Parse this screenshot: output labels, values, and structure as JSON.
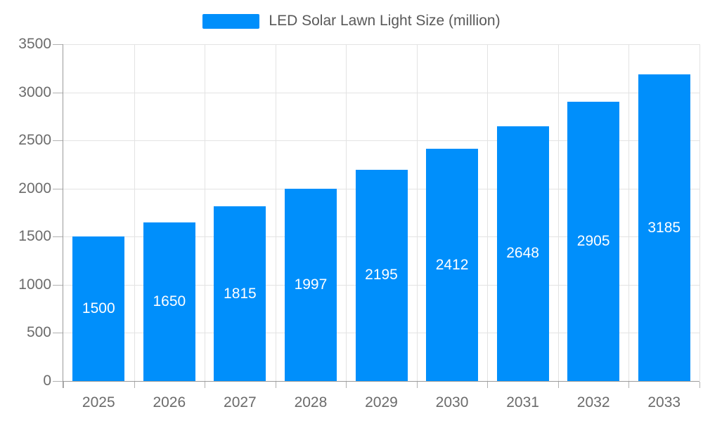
{
  "chart_data": {
    "type": "bar",
    "title": "",
    "legend": "LED Solar Lawn Light Size (million)",
    "legend_position": "top",
    "categories": [
      "2025",
      "2026",
      "2027",
      "2028",
      "2029",
      "2030",
      "2031",
      "2032",
      "2033"
    ],
    "series": [
      {
        "name": "LED Solar Lawn Light Size (million)",
        "values": [
          1500,
          1650,
          1815,
          1997,
          2195,
          2412,
          2648,
          2905,
          3185
        ]
      }
    ],
    "data_labels": [
      "1500",
      "1650",
      "1815",
      "1997",
      "2195",
      "2412",
      "2648",
      "2905",
      "3185"
    ],
    "xlabel": "",
    "ylabel": "",
    "ylim": [
      0,
      3500
    ],
    "yticks": [
      0,
      500,
      1000,
      1500,
      2000,
      2500,
      3000,
      3500
    ],
    "grid": true,
    "colors": {
      "bar": "#008FFB",
      "bar_label_text": "#ffffff",
      "axis_text": "#6b6b6b",
      "legend_text": "#595959",
      "gridline": "#e3e3e3",
      "axis_line": "#9a9a9a",
      "tick": "#b0b0b0",
      "background": "#ffffff"
    }
  }
}
